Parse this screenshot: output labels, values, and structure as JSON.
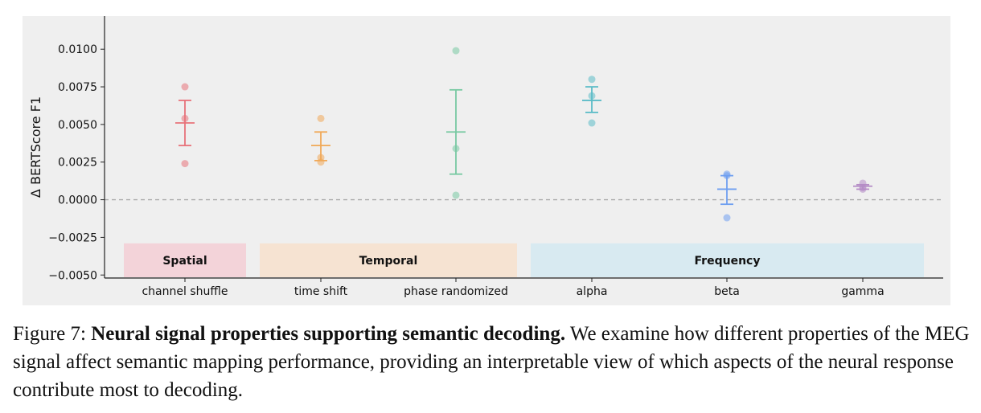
{
  "chart_data": {
    "type": "scatter",
    "ylabel": "Δ BERTScore F1",
    "xlabel": "",
    "ylim": [
      -0.0052,
      0.0122
    ],
    "yticks": [
      -0.005,
      -0.0025,
      0.0,
      0.0025,
      0.005,
      0.0075,
      0.01
    ],
    "ytick_labels": [
      "−0.0050",
      "−0.0025",
      "0.0000",
      "0.0025",
      "0.0050",
      "0.0075",
      "0.0100"
    ],
    "background": "#efefef",
    "zero_line": true,
    "categories": [
      "channel shuffle",
      "time shift",
      "phase randomized",
      "alpha",
      "beta",
      "gamma"
    ],
    "series": [
      {
        "category": "channel shuffle",
        "color": "#e8727a",
        "points": [
          0.0075,
          0.0054,
          0.0024
        ],
        "mean": 0.0051,
        "err_low": 0.0036,
        "err_high": 0.0066
      },
      {
        "category": "time shift",
        "color": "#f0a857",
        "points": [
          0.0054,
          0.0028,
          0.0025
        ],
        "mean": 0.0036,
        "err_low": 0.0026,
        "err_high": 0.0045
      },
      {
        "category": "phase randomized",
        "color": "#78c9a2",
        "points": [
          0.0099,
          0.0034,
          0.0003
        ],
        "mean": 0.0045,
        "err_low": 0.0017,
        "err_high": 0.0073
      },
      {
        "category": "alpha",
        "color": "#5bbcc7",
        "points": [
          0.008,
          0.0069,
          0.0051
        ],
        "mean": 0.0066,
        "err_low": 0.0058,
        "err_high": 0.0075
      },
      {
        "category": "beta",
        "color": "#6f9ff0",
        "points": [
          0.0017,
          0.0016,
          -0.0012
        ],
        "mean": 0.0007,
        "err_low": -0.0003,
        "err_high": 0.0016
      },
      {
        "category": "gamma",
        "color": "#b58cc6",
        "points": [
          0.0011,
          0.0008,
          0.0007
        ],
        "mean": 0.0009,
        "err_low": 0.0007,
        "err_high": 0.001
      }
    ],
    "groups": [
      {
        "label": "Spatial",
        "color": "#f3d3d9",
        "from": 0,
        "to": 0
      },
      {
        "label": "Temporal",
        "color": "#f6e3d2",
        "from": 1,
        "to": 2
      },
      {
        "label": "Frequency",
        "color": "#d8eaf1",
        "from": 3,
        "to": 5
      }
    ]
  },
  "caption": {
    "prefix": "Figure 7: ",
    "title": "Neural signal properties supporting semantic decoding.",
    "body": " We examine how different properties of the MEG signal affect semantic mapping performance, providing an interpretable view of which aspects of the neural response contribute most to decoding."
  }
}
